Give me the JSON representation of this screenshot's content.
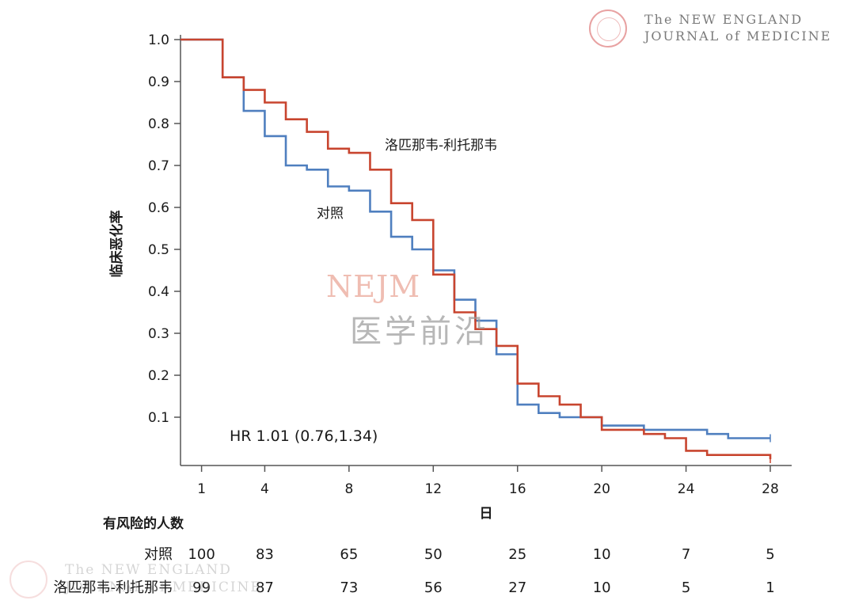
{
  "logo": {
    "line1": "The NEW ENGLAND",
    "line2": "JOURNAL of MEDICINE"
  },
  "watermark": {
    "en": "NEJM",
    "cn": "医学前沿"
  },
  "colors": {
    "control": "#4f7fbf",
    "treatment": "#c8452f",
    "axis": "#555555"
  },
  "chart_data": {
    "type": "line",
    "step": true,
    "title": "",
    "xlabel": "日",
    "ylabel": "临床恶化率",
    "xlim": [
      0,
      29
    ],
    "ylim": [
      -0.1,
      1.02
    ],
    "x_ticks": [
      1,
      4,
      8,
      12,
      16,
      20,
      24,
      28
    ],
    "y_ticks": [
      0.1,
      0.2,
      0.3,
      0.4,
      0.5,
      0.6,
      0.7,
      0.8,
      0.9,
      1.0
    ],
    "y_tick_labels": [
      "0.1",
      "0.2",
      "0.3",
      "0.4",
      "0.5",
      "0.6",
      "0.7",
      "0.8",
      "0.9",
      "1.0"
    ],
    "grid": false,
    "annotation": "HR 1.01 (0.76,1.34)",
    "series": [
      {
        "name": "对照",
        "color": "#4f7fbf",
        "x": [
          0,
          2,
          3,
          4,
          5,
          6,
          7,
          8,
          9,
          10,
          11,
          12,
          13,
          14,
          15,
          16,
          17,
          18,
          19,
          20,
          21,
          22,
          23,
          24,
          25,
          26,
          27,
          28
        ],
        "y": [
          1.0,
          0.91,
          0.83,
          0.77,
          0.7,
          0.69,
          0.65,
          0.64,
          0.59,
          0.53,
          0.5,
          0.45,
          0.38,
          0.33,
          0.25,
          0.13,
          0.11,
          0.1,
          0.1,
          0.08,
          0.08,
          0.07,
          0.07,
          0.07,
          0.06,
          0.05,
          0.05,
          0.05
        ]
      },
      {
        "name": "洛匹那韦-利托那韦",
        "color": "#c8452f",
        "x": [
          0,
          2,
          3,
          4,
          5,
          6,
          7,
          8,
          9,
          10,
          11,
          12,
          13,
          14,
          15,
          16,
          17,
          18,
          19,
          20,
          21,
          22,
          23,
          24,
          25,
          26,
          27,
          28
        ],
        "y": [
          1.0,
          0.91,
          0.88,
          0.85,
          0.81,
          0.78,
          0.74,
          0.73,
          0.69,
          0.61,
          0.57,
          0.44,
          0.35,
          0.31,
          0.27,
          0.18,
          0.15,
          0.13,
          0.1,
          0.07,
          0.07,
          0.06,
          0.05,
          0.02,
          0.01,
          0.01,
          0.01,
          0.0
        ]
      }
    ]
  },
  "risk_table": {
    "heading": "有风险的人数",
    "columns_x": [
      1,
      4,
      8,
      12,
      16,
      20,
      24,
      28
    ],
    "rows": [
      {
        "label": "对照",
        "values": [
          "100",
          "83",
          "65",
          "50",
          "25",
          "10",
          "7",
          "5"
        ]
      },
      {
        "label": "洛匹那韦-利托那韦",
        "values": [
          "99",
          "87",
          "73",
          "56",
          "27",
          "10",
          "5",
          "1"
        ]
      }
    ]
  }
}
